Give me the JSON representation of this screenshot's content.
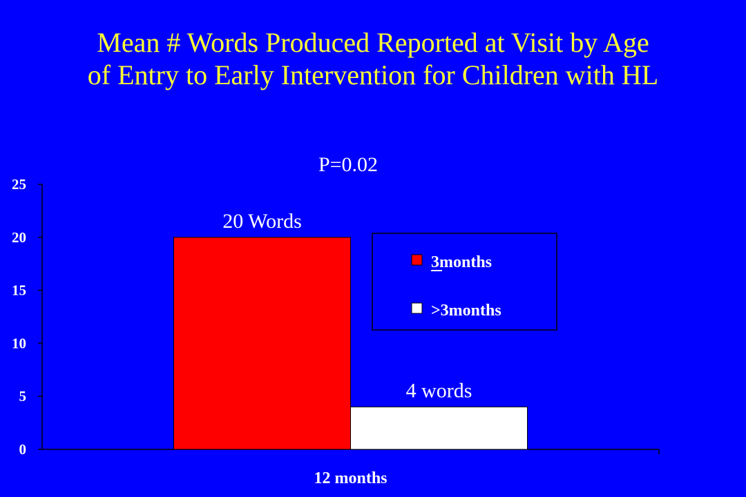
{
  "title": {
    "line1": "Mean # Words Produced Reported at Visit by Age",
    "line2": "of Entry to Early Intervention for Children with HL"
  },
  "colors": {
    "background": "#0000FF",
    "title": "#FFFF33",
    "text": "#FFFFFF",
    "series1": "#FF0000",
    "series2": "#FFFFFF"
  },
  "chart_data": {
    "type": "bar",
    "categories": [
      "12 months"
    ],
    "series": [
      {
        "name": "<3months",
        "values": [
          20
        ],
        "annotation": "20 Words"
      },
      {
        "name": ">3months",
        "values": [
          4
        ],
        "annotation": "4 words"
      }
    ],
    "annotation": "P=0.02",
    "ylim": [
      0,
      25
    ],
    "yticks": [
      0,
      5,
      10,
      15,
      20,
      25
    ],
    "grid": false,
    "legend": "right"
  }
}
